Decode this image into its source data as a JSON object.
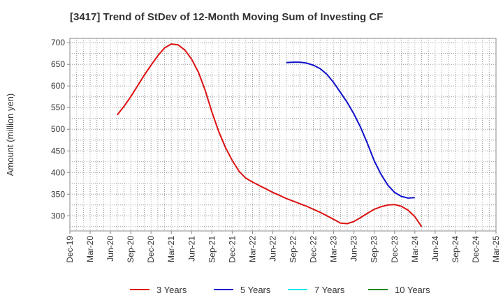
{
  "chart_data": {
    "type": "line",
    "title": "[3417]  Trend of StDev of 12-Month Moving Sum of Investing CF",
    "ylabel": "Amount (million yen)",
    "xlabel": "",
    "ylim": [
      265,
      710
    ],
    "yticks": [
      300,
      350,
      400,
      450,
      500,
      550,
      600,
      650,
      700
    ],
    "x_ticks": [
      "Dec-19",
      "Mar-20",
      "Jun-20",
      "Sep-20",
      "Dec-20",
      "Mar-21",
      "Jun-21",
      "Sep-21",
      "Dec-21",
      "Mar-22",
      "Jun-22",
      "Sep-22",
      "Dec-22",
      "Mar-23",
      "Jun-23",
      "Sep-23",
      "Dec-23",
      "Mar-24",
      "Jun-24",
      "Sep-24",
      "Dec-24",
      "Mar-25"
    ],
    "grid": true,
    "legend_position": "bottom",
    "series": [
      {
        "name": "3 Years",
        "color": "#dd1111",
        "points": [
          [
            "Jul-20",
            533
          ],
          [
            "Aug-20",
            553
          ],
          [
            "Sep-20",
            575
          ],
          [
            "Oct-20",
            600
          ],
          [
            "Nov-20",
            625
          ],
          [
            "Dec-20",
            648
          ],
          [
            "Jan-21",
            670
          ],
          [
            "Feb-21",
            688
          ],
          [
            "Mar-21",
            697
          ],
          [
            "Apr-21",
            695
          ],
          [
            "May-21",
            683
          ],
          [
            "Jun-21",
            662
          ],
          [
            "Jul-21",
            632
          ],
          [
            "Aug-21",
            590
          ],
          [
            "Sep-21",
            540
          ],
          [
            "Oct-21",
            495
          ],
          [
            "Nov-21",
            458
          ],
          [
            "Dec-21",
            428
          ],
          [
            "Jan-22",
            403
          ],
          [
            "Feb-22",
            387
          ],
          [
            "Mar-22",
            378
          ],
          [
            "Apr-22",
            370
          ],
          [
            "May-22",
            362
          ],
          [
            "Jun-22",
            354
          ],
          [
            "Jul-22",
            347
          ],
          [
            "Aug-22",
            340
          ],
          [
            "Sep-22",
            334
          ],
          [
            "Oct-22",
            328
          ],
          [
            "Nov-22",
            322
          ],
          [
            "Dec-22",
            315
          ],
          [
            "Jan-23",
            308
          ],
          [
            "Feb-23",
            300
          ],
          [
            "Mar-23",
            292
          ],
          [
            "Apr-23",
            283
          ],
          [
            "May-23",
            282
          ],
          [
            "Jun-23",
            287
          ],
          [
            "Jul-23",
            296
          ],
          [
            "Aug-23",
            306
          ],
          [
            "Sep-23",
            315
          ],
          [
            "Oct-23",
            321
          ],
          [
            "Nov-23",
            325
          ],
          [
            "Dec-23",
            326
          ],
          [
            "Jan-24",
            322
          ],
          [
            "Feb-24",
            313
          ],
          [
            "Mar-24",
            298
          ],
          [
            "Apr-24",
            275
          ]
        ]
      },
      {
        "name": "5 Years",
        "color": "#1111cc",
        "points": [
          [
            "Aug-22",
            654
          ],
          [
            "Sep-22",
            655
          ],
          [
            "Oct-22",
            655
          ],
          [
            "Nov-22",
            653
          ],
          [
            "Dec-22",
            648
          ],
          [
            "Jan-23",
            640
          ],
          [
            "Feb-23",
            627
          ],
          [
            "Mar-23",
            608
          ],
          [
            "Apr-23",
            585
          ],
          [
            "May-23",
            562
          ],
          [
            "Jun-23",
            535
          ],
          [
            "Jul-23",
            504
          ],
          [
            "Aug-23",
            467
          ],
          [
            "Sep-23",
            427
          ],
          [
            "Oct-23",
            396
          ],
          [
            "Nov-23",
            371
          ],
          [
            "Dec-23",
            354
          ],
          [
            "Jan-24",
            345
          ],
          [
            "Feb-24",
            341
          ],
          [
            "Mar-24",
            342
          ]
        ]
      },
      {
        "name": "7 Years",
        "color": "#00e5ee",
        "points": []
      },
      {
        "name": "10 Years",
        "color": "#228822",
        "points": []
      }
    ]
  }
}
